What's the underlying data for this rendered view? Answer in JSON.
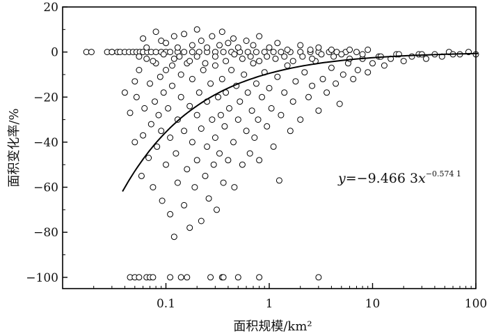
{
  "chart_data": {
    "type": "scatter",
    "xlabel": "面积规模/km²",
    "ylabel": "面积变化率/%",
    "xscale": "log",
    "xlim": [
      0.01,
      100
    ],
    "ylim": [
      -105,
      20
    ],
    "xticks": [
      0.1,
      1,
      10,
      100
    ],
    "xtick_labels": [
      "0.1",
      "1",
      "10",
      "100"
    ],
    "yticks": [
      20,
      0,
      -20,
      -40,
      -60,
      -80,
      -100
    ],
    "ytick_labels": [
      "20",
      "0",
      "−20",
      "−40",
      "−60",
      "−80",
      "−100"
    ],
    "grid": false,
    "legend": "none",
    "marker": "open-circle",
    "fit": {
      "label_parts": [
        "y",
        "=−9.466 3",
        "x",
        "−0.574 1"
      ],
      "coefficient": -9.4663,
      "exponent": -0.5741,
      "x_range": [
        0.038,
        105
      ]
    },
    "series": [
      {
        "points": [
          [
            0.017,
            0
          ],
          [
            0.019,
            0
          ],
          [
            0.027,
            0
          ],
          [
            0.03,
            0
          ],
          [
            0.034,
            0
          ],
          [
            0.036,
            0
          ],
          [
            0.04,
            0
          ],
          [
            0.044,
            0
          ],
          [
            0.048,
            0
          ],
          [
            0.052,
            0
          ],
          [
            0.056,
            0
          ],
          [
            0.06,
            0
          ],
          [
            0.066,
            0
          ],
          [
            0.072,
            0
          ],
          [
            0.08,
            0
          ],
          [
            0.09,
            0
          ],
          [
            0.1,
            0
          ],
          [
            0.11,
            0
          ],
          [
            0.13,
            0
          ],
          [
            0.15,
            0
          ],
          [
            0.18,
            0
          ],
          [
            0.21,
            0
          ],
          [
            0.25,
            0
          ],
          [
            0.3,
            0
          ],
          [
            0.36,
            0
          ],
          [
            0.43,
            0
          ],
          [
            0.52,
            0
          ],
          [
            0.62,
            0
          ],
          [
            0.75,
            0
          ],
          [
            0.9,
            0
          ],
          [
            1.1,
            0
          ],
          [
            1.3,
            0
          ],
          [
            1.6,
            0
          ],
          [
            2.0,
            0
          ],
          [
            2.5,
            0
          ],
          [
            3.0,
            0
          ],
          [
            3.8,
            0
          ],
          [
            4.5,
            0
          ],
          [
            5.5,
            0
          ],
          [
            7.0,
            0
          ],
          [
            0.045,
            -100
          ],
          [
            0.05,
            -100
          ],
          [
            0.055,
            -100
          ],
          [
            0.065,
            -100
          ],
          [
            0.07,
            -100
          ],
          [
            0.075,
            -100
          ],
          [
            0.11,
            -100
          ],
          [
            0.14,
            -100
          ],
          [
            0.16,
            -100
          ],
          [
            0.27,
            -100
          ],
          [
            0.35,
            -100
          ],
          [
            0.36,
            -100
          ],
          [
            0.5,
            -100
          ],
          [
            0.8,
            -100
          ],
          [
            3.0,
            -100
          ],
          [
            0.04,
            -18
          ],
          [
            0.045,
            -27
          ],
          [
            0.05,
            -40
          ],
          [
            0.05,
            -13
          ],
          [
            0.052,
            -20
          ],
          [
            0.055,
            -8
          ],
          [
            0.058,
            -55
          ],
          [
            0.06,
            -37
          ],
          [
            0.062,
            -25
          ],
          [
            0.065,
            -3
          ],
          [
            0.068,
            -47
          ],
          [
            0.07,
            -14
          ],
          [
            0.072,
            -32
          ],
          [
            0.075,
            -60
          ],
          [
            0.078,
            -22
          ],
          [
            0.08,
            -5
          ],
          [
            0.082,
            -42
          ],
          [
            0.085,
            -28
          ],
          [
            0.088,
            -11
          ],
          [
            0.09,
            -35
          ],
          [
            0.092,
            -66
          ],
          [
            0.095,
            -18
          ],
          [
            0.1,
            -50
          ],
          [
            0.1,
            -8
          ],
          [
            0.105,
            -25
          ],
          [
            0.11,
            -72
          ],
          [
            0.11,
            -38
          ],
          [
            0.115,
            -15
          ],
          [
            0.12,
            -82
          ],
          [
            0.12,
            -3
          ],
          [
            0.125,
            -45
          ],
          [
            0.13,
            -30
          ],
          [
            0.13,
            -58
          ],
          [
            0.14,
            -20
          ],
          [
            0.14,
            -10
          ],
          [
            0.15,
            -68
          ],
          [
            0.15,
            -35
          ],
          [
            0.16,
            -52
          ],
          [
            0.16,
            -5
          ],
          [
            0.17,
            -24
          ],
          [
            0.17,
            -78
          ],
          [
            0.18,
            -40
          ],
          [
            0.18,
            -12
          ],
          [
            0.19,
            -60
          ],
          [
            0.2,
            -28
          ],
          [
            0.2,
            -48
          ],
          [
            0.21,
            -18
          ],
          [
            0.22,
            -75
          ],
          [
            0.22,
            -34
          ],
          [
            0.23,
            -8
          ],
          [
            0.24,
            -55
          ],
          [
            0.25,
            -22
          ],
          [
            0.25,
            -42
          ],
          [
            0.26,
            -65
          ],
          [
            0.27,
            -14
          ],
          [
            0.28,
            -30
          ],
          [
            0.29,
            -50
          ],
          [
            0.3,
            -6
          ],
          [
            0.3,
            -38
          ],
          [
            0.31,
            -70
          ],
          [
            0.32,
            -20
          ],
          [
            0.33,
            -45
          ],
          [
            0.34,
            -28
          ],
          [
            0.35,
            -12
          ],
          [
            0.36,
            -58
          ],
          [
            0.37,
            -33
          ],
          [
            0.38,
            -18
          ],
          [
            0.4,
            -48
          ],
          [
            0.41,
            -25
          ],
          [
            0.43,
            -8
          ],
          [
            0.45,
            -40
          ],
          [
            0.46,
            -60
          ],
          [
            0.48,
            -15
          ],
          [
            0.5,
            -30
          ],
          [
            0.52,
            -22
          ],
          [
            0.55,
            -50
          ],
          [
            0.57,
            -10
          ],
          [
            0.6,
            -35
          ],
          [
            0.62,
            -18
          ],
          [
            0.65,
            -45
          ],
          [
            0.68,
            -26
          ],
          [
            0.7,
            -5
          ],
          [
            0.72,
            -38
          ],
          [
            0.75,
            -14
          ],
          [
            0.78,
            -30
          ],
          [
            0.8,
            -48
          ],
          [
            0.85,
            -20
          ],
          [
            0.9,
            -9
          ],
          [
            0.95,
            -33
          ],
          [
            1.0,
            -16
          ],
          [
            1.05,
            -25
          ],
          [
            1.1,
            -42
          ],
          [
            1.2,
            -11
          ],
          [
            1.25,
            -57
          ],
          [
            1.3,
            -28
          ],
          [
            1.4,
            -18
          ],
          [
            1.5,
            -6
          ],
          [
            1.6,
            -35
          ],
          [
            1.7,
            -22
          ],
          [
            1.8,
            -13
          ],
          [
            2.0,
            -30
          ],
          [
            2.2,
            -9
          ],
          [
            2.4,
            -20
          ],
          [
            2.6,
            -15
          ],
          [
            2.8,
            -4
          ],
          [
            3.0,
            -26
          ],
          [
            3.3,
            -12
          ],
          [
            3.6,
            -18
          ],
          [
            4.0,
            -7
          ],
          [
            4.4,
            -14
          ],
          [
            4.8,
            -23
          ],
          [
            5.2,
            -10
          ],
          [
            5.8,
            -5
          ],
          [
            6.5,
            -12
          ],
          [
            7.2,
            -8
          ],
          [
            8.0,
            -3
          ],
          [
            9.0,
            -9
          ],
          [
            10.0,
            -5
          ],
          [
            11.5,
            -2
          ],
          [
            13.0,
            -6
          ],
          [
            15.0,
            -3
          ],
          [
            17.0,
            -1
          ],
          [
            20.0,
            -4
          ],
          [
            24.0,
            -2
          ],
          [
            28.0,
            -1
          ],
          [
            33.0,
            -3
          ],
          [
            40.0,
            -1
          ],
          [
            47.0,
            -2
          ],
          [
            55.0,
            0
          ],
          [
            70.0,
            -1
          ],
          [
            85.0,
            0
          ],
          [
            100.0,
            -1
          ],
          [
            0.06,
            6
          ],
          [
            0.065,
            2
          ],
          [
            0.08,
            9
          ],
          [
            0.09,
            5
          ],
          [
            0.1,
            4
          ],
          [
            0.12,
            7
          ],
          [
            0.13,
            2
          ],
          [
            0.15,
            8
          ],
          [
            0.18,
            3
          ],
          [
            0.2,
            10
          ],
          [
            0.22,
            5
          ],
          [
            0.25,
            2
          ],
          [
            0.28,
            7
          ],
          [
            0.33,
            3
          ],
          [
            0.35,
            9
          ],
          [
            0.4,
            4
          ],
          [
            0.45,
            6
          ],
          [
            0.5,
            2
          ],
          [
            0.6,
            5
          ],
          [
            0.7,
            3
          ],
          [
            0.8,
            7
          ],
          [
            1.0,
            2
          ],
          [
            1.2,
            4
          ],
          [
            1.5,
            1
          ],
          [
            2.0,
            3
          ],
          [
            2.5,
            1
          ],
          [
            3.0,
            2
          ],
          [
            4.0,
            1
          ],
          [
            6.0,
            1
          ],
          [
            9.0,
            1
          ],
          [
            0.055,
            -2
          ],
          [
            0.075,
            -4
          ],
          [
            0.095,
            -1
          ],
          [
            0.115,
            -6
          ],
          [
            0.135,
            -2
          ],
          [
            0.17,
            -4
          ],
          [
            0.2,
            -2
          ],
          [
            0.24,
            -5
          ],
          [
            0.3,
            -2
          ],
          [
            0.38,
            -4
          ],
          [
            0.46,
            -1
          ],
          [
            0.55,
            -3
          ],
          [
            0.66,
            -2
          ],
          [
            0.8,
            -4
          ],
          [
            0.95,
            -2
          ],
          [
            1.15,
            -3
          ],
          [
            1.4,
            -2
          ],
          [
            1.7,
            -4
          ],
          [
            2.1,
            -2
          ],
          [
            2.6,
            -3
          ],
          [
            3.2,
            -1
          ],
          [
            4.2,
            -2
          ],
          [
            5.0,
            -1
          ],
          [
            6.0,
            -3
          ],
          [
            8.0,
            -1
          ],
          [
            12.0,
            -2
          ],
          [
            18.0,
            -1
          ],
          [
            30.0,
            -1
          ],
          [
            60.0,
            -1
          ],
          [
            0.03,
            0
          ]
        ]
      }
    ]
  }
}
